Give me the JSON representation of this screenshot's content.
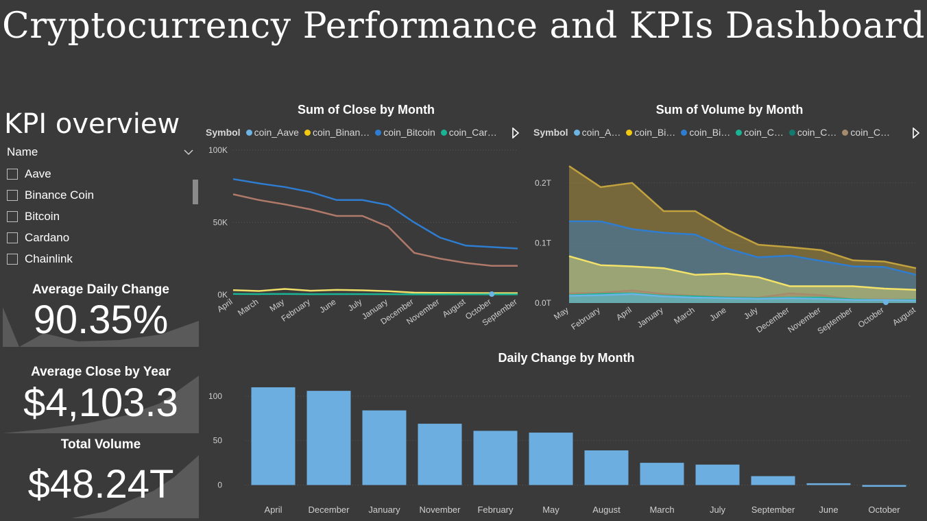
{
  "title": "Cryptocurrency Performance and KPIs Dashboard",
  "kpi_heading": "KPI overview",
  "slicer": {
    "header": "Name",
    "items": [
      "Aave",
      "Binance Coin",
      "Bitcoin",
      "Cardano",
      "Chainlink"
    ]
  },
  "cards": {
    "daily_change": {
      "label": "Average Daily Change",
      "value": "90.35%"
    },
    "close_by_year": {
      "label": "Average Close by Year",
      "value": "$4,103.3"
    },
    "total_volume": {
      "label": "Total Volume",
      "value": "$48.24T"
    }
  },
  "colors": {
    "background": "#3a3a3a",
    "aave": "#6cb4e4",
    "binance": "#f2c811",
    "bitcoin": "#2e7dd1",
    "cardano": "#1ab394",
    "chainlink": "#127a6e",
    "other": "#a68a6d",
    "bar": "#6daee0"
  },
  "chart_data": [
    {
      "type": "line",
      "title": "Sum of Close by Month",
      "legend_title": "Symbol",
      "legend": [
        "coin_Aave",
        "coin_Binan…",
        "coin_Bitcoin",
        "coin_Car…"
      ],
      "categories": [
        "April",
        "March",
        "May",
        "February",
        "June",
        "July",
        "January",
        "December",
        "November",
        "August",
        "October",
        "September"
      ],
      "yticks": [
        "0K",
        "50K",
        "100K"
      ],
      "ylim": [
        0,
        100000
      ],
      "series": [
        {
          "color": "#2e7dd1",
          "values": [
            80000,
            77000,
            74500,
            71000,
            65500,
            65500,
            62000,
            50000,
            39500,
            34000,
            33000,
            32000
          ]
        },
        {
          "color": "#b07a6a",
          "values": [
            69500,
            65500,
            62500,
            59000,
            54500,
            54500,
            47000,
            29000,
            25000,
            22000,
            20000,
            20000
          ]
        },
        {
          "color": "#f2e26a",
          "values": [
            3200,
            2600,
            4000,
            2800,
            3400,
            3100,
            2500,
            1500,
            1300,
            1200,
            1100,
            1100
          ]
        },
        {
          "color": "#1ab394",
          "values": [
            600,
            500,
            600,
            400,
            500,
            500,
            400,
            300,
            300,
            300,
            300,
            300
          ]
        }
      ]
    },
    {
      "type": "area",
      "title": "Sum of Volume by Month",
      "legend_title": "Symbol",
      "legend": [
        "coin_A…",
        "coin_Bi…",
        "coin_Bi…",
        "coin_C…",
        "coin_C…",
        "coin_C…"
      ],
      "categories": [
        "May",
        "February",
        "April",
        "January",
        "March",
        "June",
        "July",
        "December",
        "November",
        "September",
        "October",
        "August"
      ],
      "yticks": [
        "0.0T",
        "0.1T",
        "0.2T"
      ],
      "ylim": [
        0,
        0.25
      ],
      "series": [
        {
          "color": "#c2a23e",
          "values": [
            0.228,
            0.193,
            0.2,
            0.153,
            0.153,
            0.122,
            0.097,
            0.093,
            0.088,
            0.071,
            0.069,
            0.058
          ]
        },
        {
          "color": "#2e7dd1",
          "values": [
            0.136,
            0.136,
            0.123,
            0.117,
            0.114,
            0.091,
            0.076,
            0.079,
            0.07,
            0.061,
            0.06,
            0.047
          ]
        },
        {
          "color": "#f2e26a",
          "values": [
            0.078,
            0.063,
            0.061,
            0.058,
            0.047,
            0.049,
            0.043,
            0.028,
            0.028,
            0.028,
            0.024,
            0.022
          ]
        },
        {
          "color": "#a68a6d",
          "values": [
            0.016,
            0.017,
            0.021,
            0.015,
            0.012,
            0.01,
            0.009,
            0.016,
            0.013,
            0.006,
            0.006,
            0.005
          ]
        },
        {
          "color": "#1ab394",
          "values": [
            0.013,
            0.015,
            0.016,
            0.012,
            0.011,
            0.009,
            0.008,
            0.009,
            0.009,
            0.006,
            0.005,
            0.005
          ]
        },
        {
          "color": "#6cb4e4",
          "values": [
            0.012,
            0.013,
            0.015,
            0.011,
            0.009,
            0.008,
            0.007,
            0.008,
            0.007,
            0.005,
            0.005,
            0.004
          ]
        }
      ]
    },
    {
      "type": "bar",
      "title": "Daily Change by Month",
      "categories": [
        "April",
        "December",
        "January",
        "November",
        "February",
        "May",
        "August",
        "March",
        "July",
        "September",
        "June",
        "October"
      ],
      "values": [
        110,
        106,
        84,
        69,
        61,
        59,
        39,
        25,
        23,
        10,
        2,
        -2
      ],
      "yticks": [
        "0",
        "50",
        "100"
      ],
      "ylim": [
        -5,
        120
      ]
    }
  ]
}
